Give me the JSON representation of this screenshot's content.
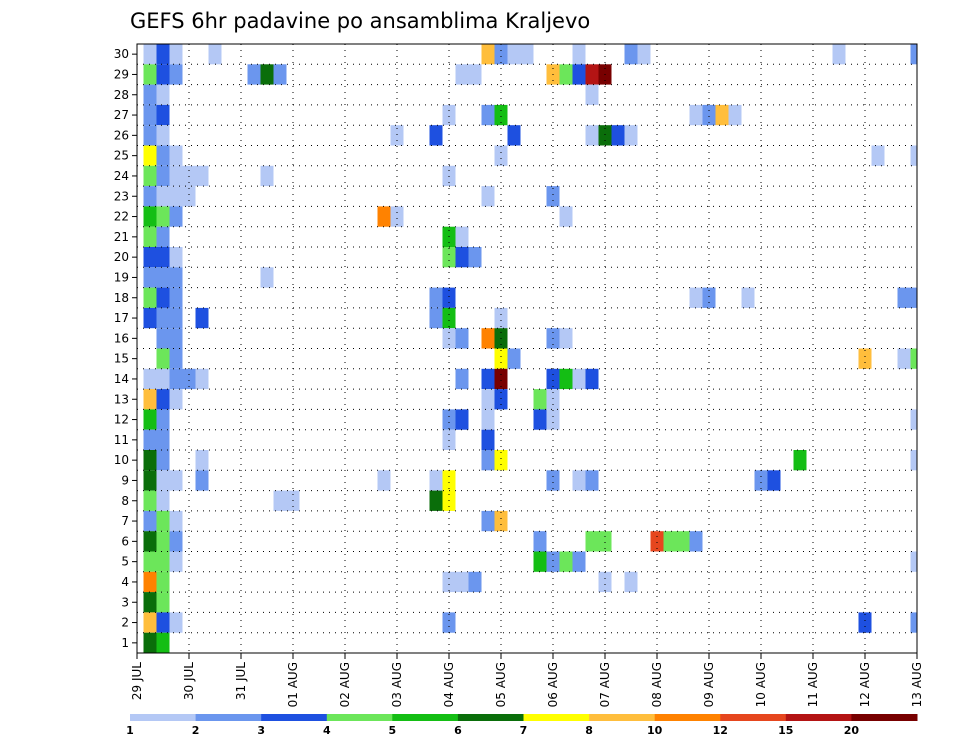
{
  "chart_data": {
    "type": "heatmap",
    "title": "GEFS 6hr padavine po ansamblima Kraljevo",
    "xlabel": "",
    "ylabel": "",
    "x_tick_labels": [
      "29 JUL",
      "30 JUL",
      "31 JUL",
      "01 AUG",
      "02 AUG",
      "03 AUG",
      "04 AUG",
      "05 AUG",
      "06 AUG",
      "07 AUG",
      "08 AUG",
      "09 AUG",
      "10 AUG",
      "11 AUG",
      "12 AUG",
      "13 AUG"
    ],
    "y_tick_labels": [
      "1",
      "2",
      "3",
      "4",
      "5",
      "6",
      "7",
      "8",
      "9",
      "10",
      "11",
      "12",
      "13",
      "14",
      "15",
      "16",
      "17",
      "18",
      "19",
      "20",
      "21",
      "22",
      "23",
      "24",
      "25",
      "26",
      "27",
      "28",
      "29",
      "30"
    ],
    "xlim": [
      0,
      15
    ],
    "ylim": [
      0,
      30
    ],
    "grid": true,
    "colorbar": {
      "labels": [
        "1",
        "2",
        "3",
        "4",
        "5",
        "6",
        "7",
        "8",
        "10",
        "12",
        "15",
        "20"
      ],
      "colors": [
        "#b4c8f5",
        "#6b96ee",
        "#1e50e0",
        "#6ce65a",
        "#14be14",
        "#0a6e0a",
        "#ffff00",
        "#ffbe3c",
        "#ff8200",
        "#e6461e",
        "#b41414",
        "#780000"
      ]
    },
    "cells": [
      {
        "m": 30,
        "x": 0.25,
        "v": 1.5
      },
      {
        "m": 30,
        "x": 0.5,
        "v": 3.5
      },
      {
        "m": 30,
        "x": 0.75,
        "v": 1.5
      },
      {
        "m": 30,
        "x": 1.5,
        "v": 1.5
      },
      {
        "m": 30,
        "x": 6.75,
        "v": 8.5
      },
      {
        "m": 30,
        "x": 7.0,
        "v": 2.5
      },
      {
        "m": 30,
        "x": 7.25,
        "v": 1.5
      },
      {
        "m": 30,
        "x": 7.5,
        "v": 1.5
      },
      {
        "m": 30,
        "x": 8.5,
        "v": 1.5
      },
      {
        "m": 30,
        "x": 9.5,
        "v": 2.5
      },
      {
        "m": 30,
        "x": 9.75,
        "v": 1.5
      },
      {
        "m": 30,
        "x": 13.5,
        "v": 1.5
      },
      {
        "m": 30,
        "x": 15.0,
        "v": 2.5
      },
      {
        "m": 29,
        "x": 0.25,
        "v": 4.5
      },
      {
        "m": 29,
        "x": 0.5,
        "v": 3.5
      },
      {
        "m": 29,
        "x": 0.75,
        "v": 2.5
      },
      {
        "m": 29,
        "x": 2.25,
        "v": 2.5
      },
      {
        "m": 29,
        "x": 2.5,
        "v": 6.5
      },
      {
        "m": 29,
        "x": 2.75,
        "v": 2.5
      },
      {
        "m": 29,
        "x": 6.25,
        "v": 1.5
      },
      {
        "m": 29,
        "x": 6.5,
        "v": 1.5
      },
      {
        "m": 29,
        "x": 8.0,
        "v": 9.0
      },
      {
        "m": 29,
        "x": 8.25,
        "v": 4.5
      },
      {
        "m": 29,
        "x": 8.5,
        "v": 3.5
      },
      {
        "m": 29,
        "x": 8.75,
        "v": 17.0
      },
      {
        "m": 29,
        "x": 9.0,
        "v": 22.0
      },
      {
        "m": 28,
        "x": 0.25,
        "v": 2.5
      },
      {
        "m": 28,
        "x": 0.5,
        "v": 1.5
      },
      {
        "m": 28,
        "x": 8.75,
        "v": 1.5
      },
      {
        "m": 27,
        "x": 0.25,
        "v": 2.5
      },
      {
        "m": 27,
        "x": 0.5,
        "v": 3.5
      },
      {
        "m": 27,
        "x": 6.0,
        "v": 1.5
      },
      {
        "m": 27,
        "x": 6.75,
        "v": 2.5
      },
      {
        "m": 27,
        "x": 7.0,
        "v": 5.5
      },
      {
        "m": 27,
        "x": 10.75,
        "v": 1.5
      },
      {
        "m": 27,
        "x": 11.0,
        "v": 2.5
      },
      {
        "m": 27,
        "x": 11.25,
        "v": 9.0
      },
      {
        "m": 27,
        "x": 11.5,
        "v": 1.5
      },
      {
        "m": 26,
        "x": 0.25,
        "v": 2.5
      },
      {
        "m": 26,
        "x": 0.5,
        "v": 1.5
      },
      {
        "m": 26,
        "x": 5.0,
        "v": 1.5
      },
      {
        "m": 26,
        "x": 5.75,
        "v": 3.5
      },
      {
        "m": 26,
        "x": 7.25,
        "v": 3.5
      },
      {
        "m": 26,
        "x": 8.75,
        "v": 1.5
      },
      {
        "m": 26,
        "x": 9.0,
        "v": 6.5
      },
      {
        "m": 26,
        "x": 9.25,
        "v": 3.5
      },
      {
        "m": 26,
        "x": 9.5,
        "v": 1.5
      },
      {
        "m": 25,
        "x": 0.25,
        "v": 7.5
      },
      {
        "m": 25,
        "x": 0.5,
        "v": 2.5
      },
      {
        "m": 25,
        "x": 0.75,
        "v": 1.5
      },
      {
        "m": 25,
        "x": 7.0,
        "v": 1.5
      },
      {
        "m": 25,
        "x": 14.25,
        "v": 1.5
      },
      {
        "m": 25,
        "x": 15.0,
        "v": 1.5
      },
      {
        "m": 24,
        "x": 0.25,
        "v": 4.5
      },
      {
        "m": 24,
        "x": 0.5,
        "v": 2.5
      },
      {
        "m": 24,
        "x": 0.75,
        "v": 1.5
      },
      {
        "m": 24,
        "x": 1.0,
        "v": 1.5
      },
      {
        "m": 24,
        "x": 1.25,
        "v": 1.5
      },
      {
        "m": 24,
        "x": 2.5,
        "v": 1.5
      },
      {
        "m": 24,
        "x": 6.0,
        "v": 1.5
      },
      {
        "m": 23,
        "x": 0.25,
        "v": 2.5
      },
      {
        "m": 23,
        "x": 0.5,
        "v": 1.5
      },
      {
        "m": 23,
        "x": 0.75,
        "v": 1.5
      },
      {
        "m": 23,
        "x": 1.0,
        "v": 1.5
      },
      {
        "m": 23,
        "x": 6.75,
        "v": 1.5
      },
      {
        "m": 23,
        "x": 8.0,
        "v": 2.5
      },
      {
        "m": 22,
        "x": 0.25,
        "v": 5.5
      },
      {
        "m": 22,
        "x": 0.5,
        "v": 4.5
      },
      {
        "m": 22,
        "x": 0.75,
        "v": 2.5
      },
      {
        "m": 22,
        "x": 4.75,
        "v": 11.0
      },
      {
        "m": 22,
        "x": 5.0,
        "v": 1.5
      },
      {
        "m": 22,
        "x": 8.25,
        "v": 1.5
      },
      {
        "m": 21,
        "x": 0.25,
        "v": 4.5
      },
      {
        "m": 21,
        "x": 0.5,
        "v": 2.5
      },
      {
        "m": 21,
        "x": 6.0,
        "v": 5.5
      },
      {
        "m": 21,
        "x": 6.25,
        "v": 1.5
      },
      {
        "m": 20,
        "x": 0.25,
        "v": 3.5
      },
      {
        "m": 20,
        "x": 0.5,
        "v": 3.5
      },
      {
        "m": 20,
        "x": 0.75,
        "v": 1.5
      },
      {
        "m": 20,
        "x": 6.0,
        "v": 4.5
      },
      {
        "m": 20,
        "x": 6.25,
        "v": 3.5
      },
      {
        "m": 20,
        "x": 6.5,
        "v": 2.5
      },
      {
        "m": 19,
        "x": 0.25,
        "v": 2.5
      },
      {
        "m": 19,
        "x": 0.5,
        "v": 2.5
      },
      {
        "m": 19,
        "x": 0.75,
        "v": 2.5
      },
      {
        "m": 19,
        "x": 2.5,
        "v": 1.5
      },
      {
        "m": 18,
        "x": 0.25,
        "v": 4.5
      },
      {
        "m": 18,
        "x": 0.5,
        "v": 3.5
      },
      {
        "m": 18,
        "x": 0.75,
        "v": 2.5
      },
      {
        "m": 18,
        "x": 5.75,
        "v": 2.5
      },
      {
        "m": 18,
        "x": 6.0,
        "v": 3.5
      },
      {
        "m": 18,
        "x": 10.75,
        "v": 1.5
      },
      {
        "m": 18,
        "x": 11.0,
        "v": 2.5
      },
      {
        "m": 18,
        "x": 11.75,
        "v": 1.5
      },
      {
        "m": 18,
        "x": 14.75,
        "v": 2.5
      },
      {
        "m": 18,
        "x": 15.0,
        "v": 2.5
      },
      {
        "m": 17,
        "x": 0.25,
        "v": 3.5
      },
      {
        "m": 17,
        "x": 0.5,
        "v": 2.5
      },
      {
        "m": 17,
        "x": 0.75,
        "v": 2.5
      },
      {
        "m": 17,
        "x": 1.25,
        "v": 3.5
      },
      {
        "m": 17,
        "x": 5.75,
        "v": 2.5
      },
      {
        "m": 17,
        "x": 6.0,
        "v": 5.5
      },
      {
        "m": 17,
        "x": 7.0,
        "v": 1.5
      },
      {
        "m": 16,
        "x": 0.5,
        "v": 2.5
      },
      {
        "m": 16,
        "x": 0.75,
        "v": 2.5
      },
      {
        "m": 16,
        "x": 6.0,
        "v": 1.5
      },
      {
        "m": 16,
        "x": 6.25,
        "v": 2.5
      },
      {
        "m": 16,
        "x": 6.75,
        "v": 11.0
      },
      {
        "m": 16,
        "x": 7.0,
        "v": 6.5
      },
      {
        "m": 16,
        "x": 8.0,
        "v": 2.5
      },
      {
        "m": 16,
        "x": 8.25,
        "v": 1.5
      },
      {
        "m": 15,
        "x": 0.5,
        "v": 4.5
      },
      {
        "m": 15,
        "x": 0.75,
        "v": 2.5
      },
      {
        "m": 15,
        "x": 7.0,
        "v": 7.5
      },
      {
        "m": 15,
        "x": 7.25,
        "v": 2.5
      },
      {
        "m": 15,
        "x": 14.0,
        "v": 9.0
      },
      {
        "m": 15,
        "x": 14.75,
        "v": 1.5
      },
      {
        "m": 15,
        "x": 15.0,
        "v": 4.5
      },
      {
        "m": 14,
        "x": 0.25,
        "v": 1.5
      },
      {
        "m": 14,
        "x": 0.5,
        "v": 1.5
      },
      {
        "m": 14,
        "x": 0.75,
        "v": 2.5
      },
      {
        "m": 14,
        "x": 1.0,
        "v": 2.5
      },
      {
        "m": 14,
        "x": 1.25,
        "v": 1.5
      },
      {
        "m": 14,
        "x": 6.25,
        "v": 2.5
      },
      {
        "m": 14,
        "x": 6.75,
        "v": 3.5
      },
      {
        "m": 14,
        "x": 7.0,
        "v": 22.0
      },
      {
        "m": 14,
        "x": 8.0,
        "v": 3.5
      },
      {
        "m": 14,
        "x": 8.25,
        "v": 5.5
      },
      {
        "m": 14,
        "x": 8.5,
        "v": 1.5
      },
      {
        "m": 14,
        "x": 8.75,
        "v": 3.5
      },
      {
        "m": 13,
        "x": 0.25,
        "v": 9.0
      },
      {
        "m": 13,
        "x": 0.5,
        "v": 3.5
      },
      {
        "m": 13,
        "x": 0.75,
        "v": 1.5
      },
      {
        "m": 13,
        "x": 6.75,
        "v": 1.5
      },
      {
        "m": 13,
        "x": 7.0,
        "v": 3.5
      },
      {
        "m": 13,
        "x": 7.75,
        "v": 4.5
      },
      {
        "m": 13,
        "x": 8.0,
        "v": 1.5
      },
      {
        "m": 12,
        "x": 0.25,
        "v": 5.5
      },
      {
        "m": 12,
        "x": 0.5,
        "v": 2.5
      },
      {
        "m": 12,
        "x": 6.0,
        "v": 2.5
      },
      {
        "m": 12,
        "x": 6.25,
        "v": 3.5
      },
      {
        "m": 12,
        "x": 6.75,
        "v": 1.5
      },
      {
        "m": 12,
        "x": 7.75,
        "v": 3.5
      },
      {
        "m": 12,
        "x": 8.0,
        "v": 1.5
      },
      {
        "m": 12,
        "x": 15.0,
        "v": 1.5
      },
      {
        "m": 11,
        "x": 0.25,
        "v": 2.5
      },
      {
        "m": 11,
        "x": 0.5,
        "v": 2.5
      },
      {
        "m": 11,
        "x": 6.0,
        "v": 1.5
      },
      {
        "m": 11,
        "x": 6.75,
        "v": 3.5
      },
      {
        "m": 10,
        "x": 0.25,
        "v": 6.5
      },
      {
        "m": 10,
        "x": 0.5,
        "v": 2.5
      },
      {
        "m": 10,
        "x": 1.25,
        "v": 1.5
      },
      {
        "m": 10,
        "x": 6.75,
        "v": 2.5
      },
      {
        "m": 10,
        "x": 7.0,
        "v": 7.5
      },
      {
        "m": 10,
        "x": 12.75,
        "v": 5.5
      },
      {
        "m": 10,
        "x": 15.0,
        "v": 1.5
      },
      {
        "m": 9,
        "x": 0.25,
        "v": 6.5
      },
      {
        "m": 9,
        "x": 0.5,
        "v": 1.5
      },
      {
        "m": 9,
        "x": 0.75,
        "v": 1.5
      },
      {
        "m": 9,
        "x": 1.25,
        "v": 2.5
      },
      {
        "m": 9,
        "x": 4.75,
        "v": 1.5
      },
      {
        "m": 9,
        "x": 5.75,
        "v": 1.5
      },
      {
        "m": 9,
        "x": 6.0,
        "v": 7.5
      },
      {
        "m": 9,
        "x": 8.0,
        "v": 2.5
      },
      {
        "m": 9,
        "x": 8.5,
        "v": 1.5
      },
      {
        "m": 9,
        "x": 8.75,
        "v": 2.5
      },
      {
        "m": 9,
        "x": 12.0,
        "v": 2.5
      },
      {
        "m": 9,
        "x": 12.25,
        "v": 3.5
      },
      {
        "m": 8,
        "x": 0.25,
        "v": 4.5
      },
      {
        "m": 8,
        "x": 0.5,
        "v": 1.5
      },
      {
        "m": 8,
        "x": 2.75,
        "v": 1.5
      },
      {
        "m": 8,
        "x": 3.0,
        "v": 1.5
      },
      {
        "m": 8,
        "x": 5.75,
        "v": 6.5
      },
      {
        "m": 8,
        "x": 6.0,
        "v": 7.5
      },
      {
        "m": 7,
        "x": 0.25,
        "v": 2.5
      },
      {
        "m": 7,
        "x": 0.5,
        "v": 4.5
      },
      {
        "m": 7,
        "x": 0.75,
        "v": 1.5
      },
      {
        "m": 7,
        "x": 6.75,
        "v": 2.5
      },
      {
        "m": 7,
        "x": 7.0,
        "v": 9.0
      },
      {
        "m": 6,
        "x": 0.25,
        "v": 6.5
      },
      {
        "m": 6,
        "x": 0.5,
        "v": 4.5
      },
      {
        "m": 6,
        "x": 0.75,
        "v": 2.5
      },
      {
        "m": 6,
        "x": 7.75,
        "v": 2.5
      },
      {
        "m": 6,
        "x": 8.75,
        "v": 4.5
      },
      {
        "m": 6,
        "x": 9.0,
        "v": 4.5
      },
      {
        "m": 6,
        "x": 10.0,
        "v": 13.0
      },
      {
        "m": 6,
        "x": 10.25,
        "v": 4.5
      },
      {
        "m": 6,
        "x": 10.5,
        "v": 4.5
      },
      {
        "m": 6,
        "x": 10.75,
        "v": 2.5
      },
      {
        "m": 5,
        "x": 0.25,
        "v": 4.5
      },
      {
        "m": 5,
        "x": 0.5,
        "v": 4.5
      },
      {
        "m": 5,
        "x": 0.75,
        "v": 1.5
      },
      {
        "m": 5,
        "x": 7.75,
        "v": 5.5
      },
      {
        "m": 5,
        "x": 8.0,
        "v": 2.5
      },
      {
        "m": 5,
        "x": 8.25,
        "v": 4.5
      },
      {
        "m": 5,
        "x": 8.5,
        "v": 2.5
      },
      {
        "m": 5,
        "x": 15.0,
        "v": 1.5
      },
      {
        "m": 4,
        "x": 0.25,
        "v": 11.0
      },
      {
        "m": 4,
        "x": 0.5,
        "v": 4.5
      },
      {
        "m": 4,
        "x": 6.0,
        "v": 1.5
      },
      {
        "m": 4,
        "x": 6.25,
        "v": 1.5
      },
      {
        "m": 4,
        "x": 6.5,
        "v": 2.5
      },
      {
        "m": 4,
        "x": 9.0,
        "v": 1.5
      },
      {
        "m": 4,
        "x": 9.5,
        "v": 1.5
      },
      {
        "m": 3,
        "x": 0.25,
        "v": 6.5
      },
      {
        "m": 3,
        "x": 0.5,
        "v": 4.5
      },
      {
        "m": 2,
        "x": 0.25,
        "v": 9.0
      },
      {
        "m": 2,
        "x": 0.5,
        "v": 3.5
      },
      {
        "m": 2,
        "x": 0.75,
        "v": 1.5
      },
      {
        "m": 2,
        "x": 6.0,
        "v": 2.5
      },
      {
        "m": 2,
        "x": 14.0,
        "v": 3.5
      },
      {
        "m": 2,
        "x": 15.0,
        "v": 2.5
      },
      {
        "m": 1,
        "x": 0.25,
        "v": 6.5
      },
      {
        "m": 1,
        "x": 0.5,
        "v": 5.5
      }
    ]
  }
}
